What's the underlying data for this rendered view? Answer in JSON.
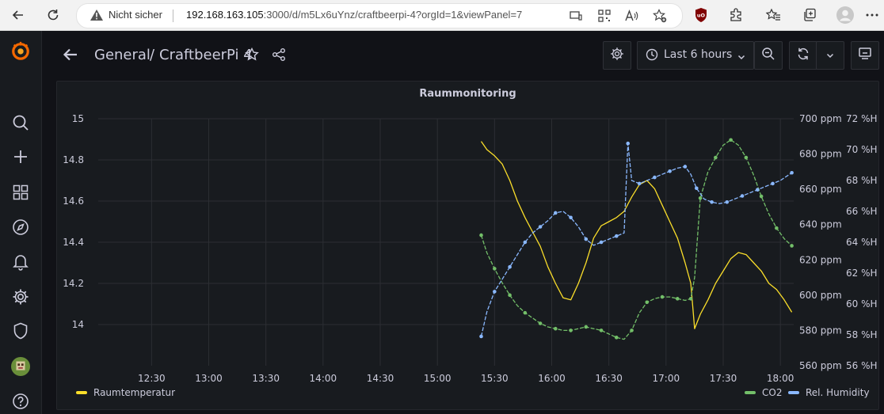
{
  "browser": {
    "insecure_label": "Nicht sicher",
    "url_host": "192.168.163.105",
    "url_rest": ":3000/d/m5Lx6uYnz/craftbeerpi-4?orgId=1&viewPanel=7"
  },
  "header": {
    "folder": "General",
    "separator": "/",
    "title": "CraftbeerPi 4",
    "time_range": "Last 6 hours"
  },
  "colors": {
    "temperature": "#fade2a",
    "co2": "#73bf69",
    "humidity": "#8ab8ff",
    "grid": "#2c2e33"
  },
  "chart_data": {
    "type": "line",
    "title": "Raummonitoring",
    "x_ticks": [
      "12:30",
      "13:00",
      "13:30",
      "14:00",
      "14:30",
      "15:00",
      "15:30",
      "16:00",
      "16:30",
      "17:00",
      "17:30",
      "18:00"
    ],
    "x_range": [
      "12:02",
      "18:07"
    ],
    "left_axis": {
      "ticks": [
        "15",
        "14.8",
        "14.6",
        "14.4",
        "14.2",
        "14"
      ],
      "range": [
        13.8,
        15.0
      ]
    },
    "right_axis_ppm": {
      "ticks": [
        "700 ppm",
        "680 ppm",
        "660 ppm",
        "640 ppm",
        "620 ppm",
        "600 ppm",
        "580 ppm",
        "560 ppm"
      ],
      "range": [
        560,
        700
      ]
    },
    "right_axis_pct": {
      "ticks": [
        "72 %H",
        "70 %H",
        "68 %H",
        "66 %H",
        "64 %H",
        "62 %H",
        "60 %H",
        "58 %H",
        "56 %H"
      ],
      "range": [
        56,
        72
      ]
    },
    "legend_position": "bottom",
    "series": [
      {
        "name": "Raumtemperatur",
        "axis": "left",
        "x": [
          "15:23",
          "15:26",
          "15:30",
          "15:34",
          "15:38",
          "15:42",
          "15:46",
          "15:50",
          "15:54",
          "15:58",
          "16:02",
          "16:06",
          "16:10",
          "16:14",
          "16:18",
          "16:22",
          "16:26",
          "16:30",
          "16:34",
          "16:38",
          "16:42",
          "16:46",
          "16:50",
          "16:54",
          "16:58",
          "17:02",
          "17:06",
          "17:10",
          "17:13",
          "17:15",
          "17:18",
          "17:22",
          "17:26",
          "17:30",
          "17:34",
          "17:38",
          "17:42",
          "17:46",
          "17:50",
          "17:54",
          "17:58",
          "18:02",
          "18:06"
        ],
        "values": [
          14.89,
          14.85,
          14.82,
          14.78,
          14.7,
          14.6,
          14.52,
          14.45,
          14.38,
          14.28,
          14.2,
          14.13,
          14.12,
          14.2,
          14.3,
          14.42,
          14.48,
          14.5,
          14.52,
          14.55,
          14.62,
          14.68,
          14.7,
          14.66,
          14.58,
          14.5,
          14.42,
          14.3,
          14.2,
          13.98,
          14.05,
          14.12,
          14.2,
          14.26,
          14.32,
          14.35,
          14.34,
          14.3,
          14.26,
          14.2,
          14.17,
          14.12,
          14.06
        ]
      },
      {
        "name": "CO2",
        "axis": "right_ppm",
        "x": [
          "15:23",
          "15:26",
          "15:30",
          "15:34",
          "15:38",
          "15:42",
          "15:46",
          "15:50",
          "15:54",
          "15:58",
          "16:02",
          "16:06",
          "16:10",
          "16:14",
          "16:18",
          "16:22",
          "16:26",
          "16:30",
          "16:34",
          "16:38",
          "16:42",
          "16:46",
          "16:50",
          "16:54",
          "16:58",
          "17:02",
          "17:06",
          "17:10",
          "17:13",
          "17:15",
          "17:18",
          "17:22",
          "17:26",
          "17:30",
          "17:34",
          "17:38",
          "17:42",
          "17:46",
          "17:50",
          "17:54",
          "17:58",
          "18:02",
          "18:06"
        ],
        "values": [
          634,
          624,
          615,
          607,
          600,
          594,
          590,
          587,
          584,
          582,
          581,
          580,
          580,
          581,
          582,
          581,
          580,
          578,
          576,
          575,
          580,
          590,
          596,
          598,
          599,
          599,
          598,
          597,
          598,
          610,
          655,
          670,
          678,
          685,
          688,
          685,
          678,
          668,
          656,
          646,
          638,
          632,
          628
        ]
      },
      {
        "name": "Rel. Humidity",
        "axis": "right_pct",
        "x": [
          "15:23",
          "15:26",
          "15:30",
          "15:34",
          "15:38",
          "15:42",
          "15:46",
          "15:50",
          "15:54",
          "15:58",
          "16:02",
          "16:06",
          "16:10",
          "16:14",
          "16:18",
          "16:22",
          "16:26",
          "16:30",
          "16:34",
          "16:38",
          "16:40",
          "16:42",
          "16:46",
          "16:50",
          "16:54",
          "16:58",
          "17:02",
          "17:06",
          "17:10",
          "17:13",
          "17:16",
          "17:20",
          "17:24",
          "17:28",
          "17:32",
          "17:36",
          "17:40",
          "17:44",
          "17:48",
          "17:52",
          "17:56",
          "18:00",
          "18:06"
        ],
        "values": [
          57.9,
          59.5,
          60.8,
          61.6,
          62.4,
          63.2,
          64.0,
          64.6,
          65.0,
          65.4,
          65.9,
          66.0,
          65.6,
          65.0,
          64.2,
          63.8,
          64.0,
          64.2,
          64.4,
          64.6,
          70.4,
          68.0,
          67.8,
          68.0,
          68.2,
          68.4,
          68.6,
          68.8,
          68.9,
          68.4,
          67.5,
          66.8,
          66.6,
          66.5,
          66.6,
          66.8,
          67.0,
          67.2,
          67.4,
          67.6,
          67.8,
          68.0,
          68.5
        ]
      }
    ]
  }
}
